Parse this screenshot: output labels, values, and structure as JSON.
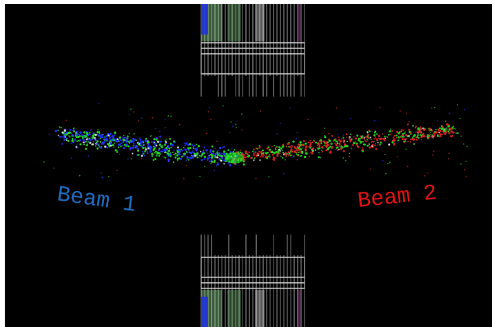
{
  "labels": {
    "beam_1": "Beam 1",
    "beam_2": "Beam 2"
  }
}
